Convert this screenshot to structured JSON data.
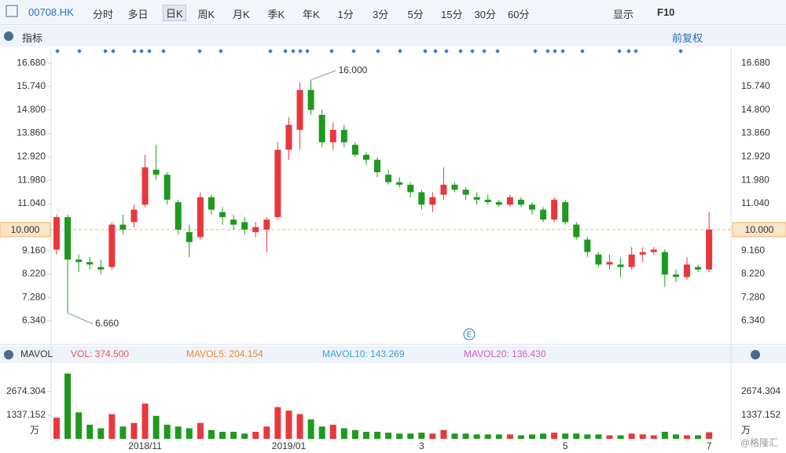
{
  "toolbar": {
    "symbol": "00708.HK",
    "periods": [
      "分时",
      "多日",
      "日K",
      "周K",
      "月K",
      "季K",
      "年K",
      "1分",
      "3分",
      "5分",
      "15分",
      "30分",
      "60分"
    ],
    "display": "显示",
    "f10": "F10"
  },
  "indicator_bar": {
    "title": "指标",
    "adjust": "前复权"
  },
  "chart_data": [
    {
      "type": "candlestick",
      "ylim": [
        5.49,
        17.25
      ],
      "yticks": [
        {
          "value": 16.68,
          "label": "16.680"
        },
        {
          "value": 15.74,
          "label": "15.740"
        },
        {
          "value": 14.8,
          "label": "14.800"
        },
        {
          "value": 13.86,
          "label": "13.860"
        },
        {
          "value": 12.92,
          "label": "12.920"
        },
        {
          "value": 11.98,
          "label": "11.980"
        },
        {
          "value": 11.04,
          "label": "11.040"
        },
        {
          "value": 10,
          "label": "10.000"
        },
        {
          "value": 9.16,
          "label": "9.160"
        },
        {
          "value": 8.22,
          "label": "8.220"
        },
        {
          "value": 7.28,
          "label": "7.280"
        },
        {
          "value": 6.34,
          "label": "6.340"
        }
      ],
      "categories": [
        null,
        null,
        null,
        null,
        null,
        null,
        null,
        null,
        "2018/11",
        null,
        null,
        null,
        null,
        null,
        null,
        null,
        null,
        null,
        null,
        null,
        null,
        "2019/01",
        null,
        null,
        null,
        null,
        null,
        null,
        null,
        null,
        null,
        null,
        null,
        "3",
        null,
        null,
        null,
        null,
        null,
        null,
        null,
        null,
        null,
        null,
        null,
        null,
        "5",
        null,
        null,
        null,
        null,
        null,
        null,
        null,
        null,
        null,
        null,
        null,
        null,
        "7"
      ],
      "open": [
        9.2,
        10.5,
        8.8,
        8.7,
        8.5,
        8.5,
        10.2,
        10.3,
        11.0,
        12.4,
        12.2,
        11.1,
        9.9,
        9.7,
        11.3,
        10.7,
        10.4,
        10.3,
        9.9,
        10.0,
        10.5,
        13.2,
        14.0,
        15.6,
        14.6,
        13.5,
        14.0,
        13.4,
        13.0,
        12.8,
        12.2,
        11.9,
        11.8,
        11.5,
        11.0,
        11.4,
        11.8,
        11.6,
        11.3,
        11.2,
        11.1,
        11.0,
        11.2,
        11.0,
        10.8,
        10.4,
        11.1,
        10.2,
        9.6,
        9.0,
        8.6,
        8.6,
        8.5,
        9.0,
        9.1,
        9.1,
        8.2,
        8.1,
        8.5,
        8.4
      ],
      "high": [
        10.6,
        10.6,
        9.0,
        8.9,
        8.8,
        10.3,
        10.6,
        11.0,
        13.0,
        13.4,
        12.3,
        11.2,
        10.2,
        11.5,
        11.4,
        10.9,
        10.6,
        10.5,
        10.3,
        10.5,
        13.5,
        14.5,
        15.9,
        16.0,
        14.8,
        14.3,
        14.2,
        13.5,
        13.1,
        12.9,
        12.4,
        12.1,
        11.9,
        11.6,
        11.5,
        12.5,
        11.9,
        11.7,
        11.5,
        11.4,
        11.2,
        11.4,
        11.3,
        11.1,
        10.9,
        11.3,
        11.2,
        10.3,
        9.7,
        9.1,
        9.0,
        8.9,
        9.3,
        9.3,
        9.3,
        9.2,
        8.4,
        8.9,
        8.6,
        10.7
      ],
      "low": [
        9.0,
        6.66,
        8.3,
        8.4,
        8.2,
        8.4,
        9.8,
        10.1,
        10.9,
        12.0,
        11.0,
        9.8,
        8.9,
        9.6,
        10.6,
        10.2,
        10.0,
        9.8,
        9.7,
        9.1,
        10.4,
        12.8,
        13.2,
        14.6,
        13.3,
        13.2,
        13.3,
        12.9,
        12.6,
        12.1,
        11.8,
        11.7,
        11.3,
        10.8,
        10.7,
        11.2,
        11.5,
        11.2,
        11.0,
        11.0,
        10.9,
        10.9,
        10.9,
        10.6,
        10.3,
        10.3,
        10.2,
        9.6,
        8.9,
        8.5,
        8.4,
        8.1,
        8.4,
        8.7,
        9.0,
        7.7,
        7.9,
        8.0,
        8.3,
        8.3
      ],
      "close": [
        10.5,
        8.8,
        8.7,
        8.6,
        8.4,
        10.2,
        10.0,
        10.8,
        12.5,
        12.2,
        11.2,
        10.0,
        9.5,
        11.3,
        10.8,
        10.5,
        10.2,
        10.0,
        10.1,
        10.4,
        13.2,
        14.2,
        15.6,
        14.8,
        13.5,
        14.0,
        13.5,
        13.0,
        12.8,
        12.3,
        11.9,
        11.8,
        11.5,
        11.0,
        11.3,
        11.8,
        11.6,
        11.4,
        11.2,
        11.1,
        11.0,
        11.3,
        11.0,
        10.8,
        10.4,
        11.2,
        10.3,
        9.7,
        9.1,
        8.6,
        8.7,
        8.5,
        9.0,
        9.1,
        9.2,
        8.2,
        8.1,
        8.6,
        8.4,
        10.0
      ],
      "up_color": "#e8383d",
      "down_color": "#1e9a1e",
      "annotations": [
        {
          "index": 23,
          "value": 16,
          "label": "16.000"
        },
        {
          "index": 1,
          "value": 6.66,
          "label": "6.660"
        }
      ],
      "price_line": {
        "value": 10,
        "label": "10.000"
      }
    },
    {
      "type": "bar",
      "title": "MAVOL",
      "ylim": [
        0,
        4279
      ],
      "yticks": [
        2674.304,
        1337.152
      ],
      "unit": "万",
      "legend": [
        {
          "text": "VOL: 374.500",
          "color": "#e8585d"
        },
        {
          "text": "MAVOL5: 204.154",
          "color": "#f08a2c"
        },
        {
          "text": "MAVOL10: 143.269",
          "color": "#3aa3d8"
        },
        {
          "text": "MAVOL20: 136.430",
          "color": "#d35cc9"
        }
      ],
      "values": [
        1200,
        3700,
        1500,
        800,
        600,
        1400,
        700,
        900,
        2000,
        1300,
        800,
        700,
        600,
        900,
        500,
        400,
        400,
        300,
        400,
        700,
        1800,
        1600,
        1400,
        1100,
        700,
        800,
        600,
        500,
        400,
        400,
        350,
        300,
        300,
        350,
        300,
        500,
        300,
        300,
        250,
        250,
        250,
        250,
        200,
        250,
        300,
        350,
        300,
        300,
        250,
        250,
        200,
        200,
        300,
        250,
        200,
        400,
        250,
        200,
        200,
        374.5
      ]
    }
  ],
  "watermark": "@格隆汇",
  "event_marker": "E"
}
